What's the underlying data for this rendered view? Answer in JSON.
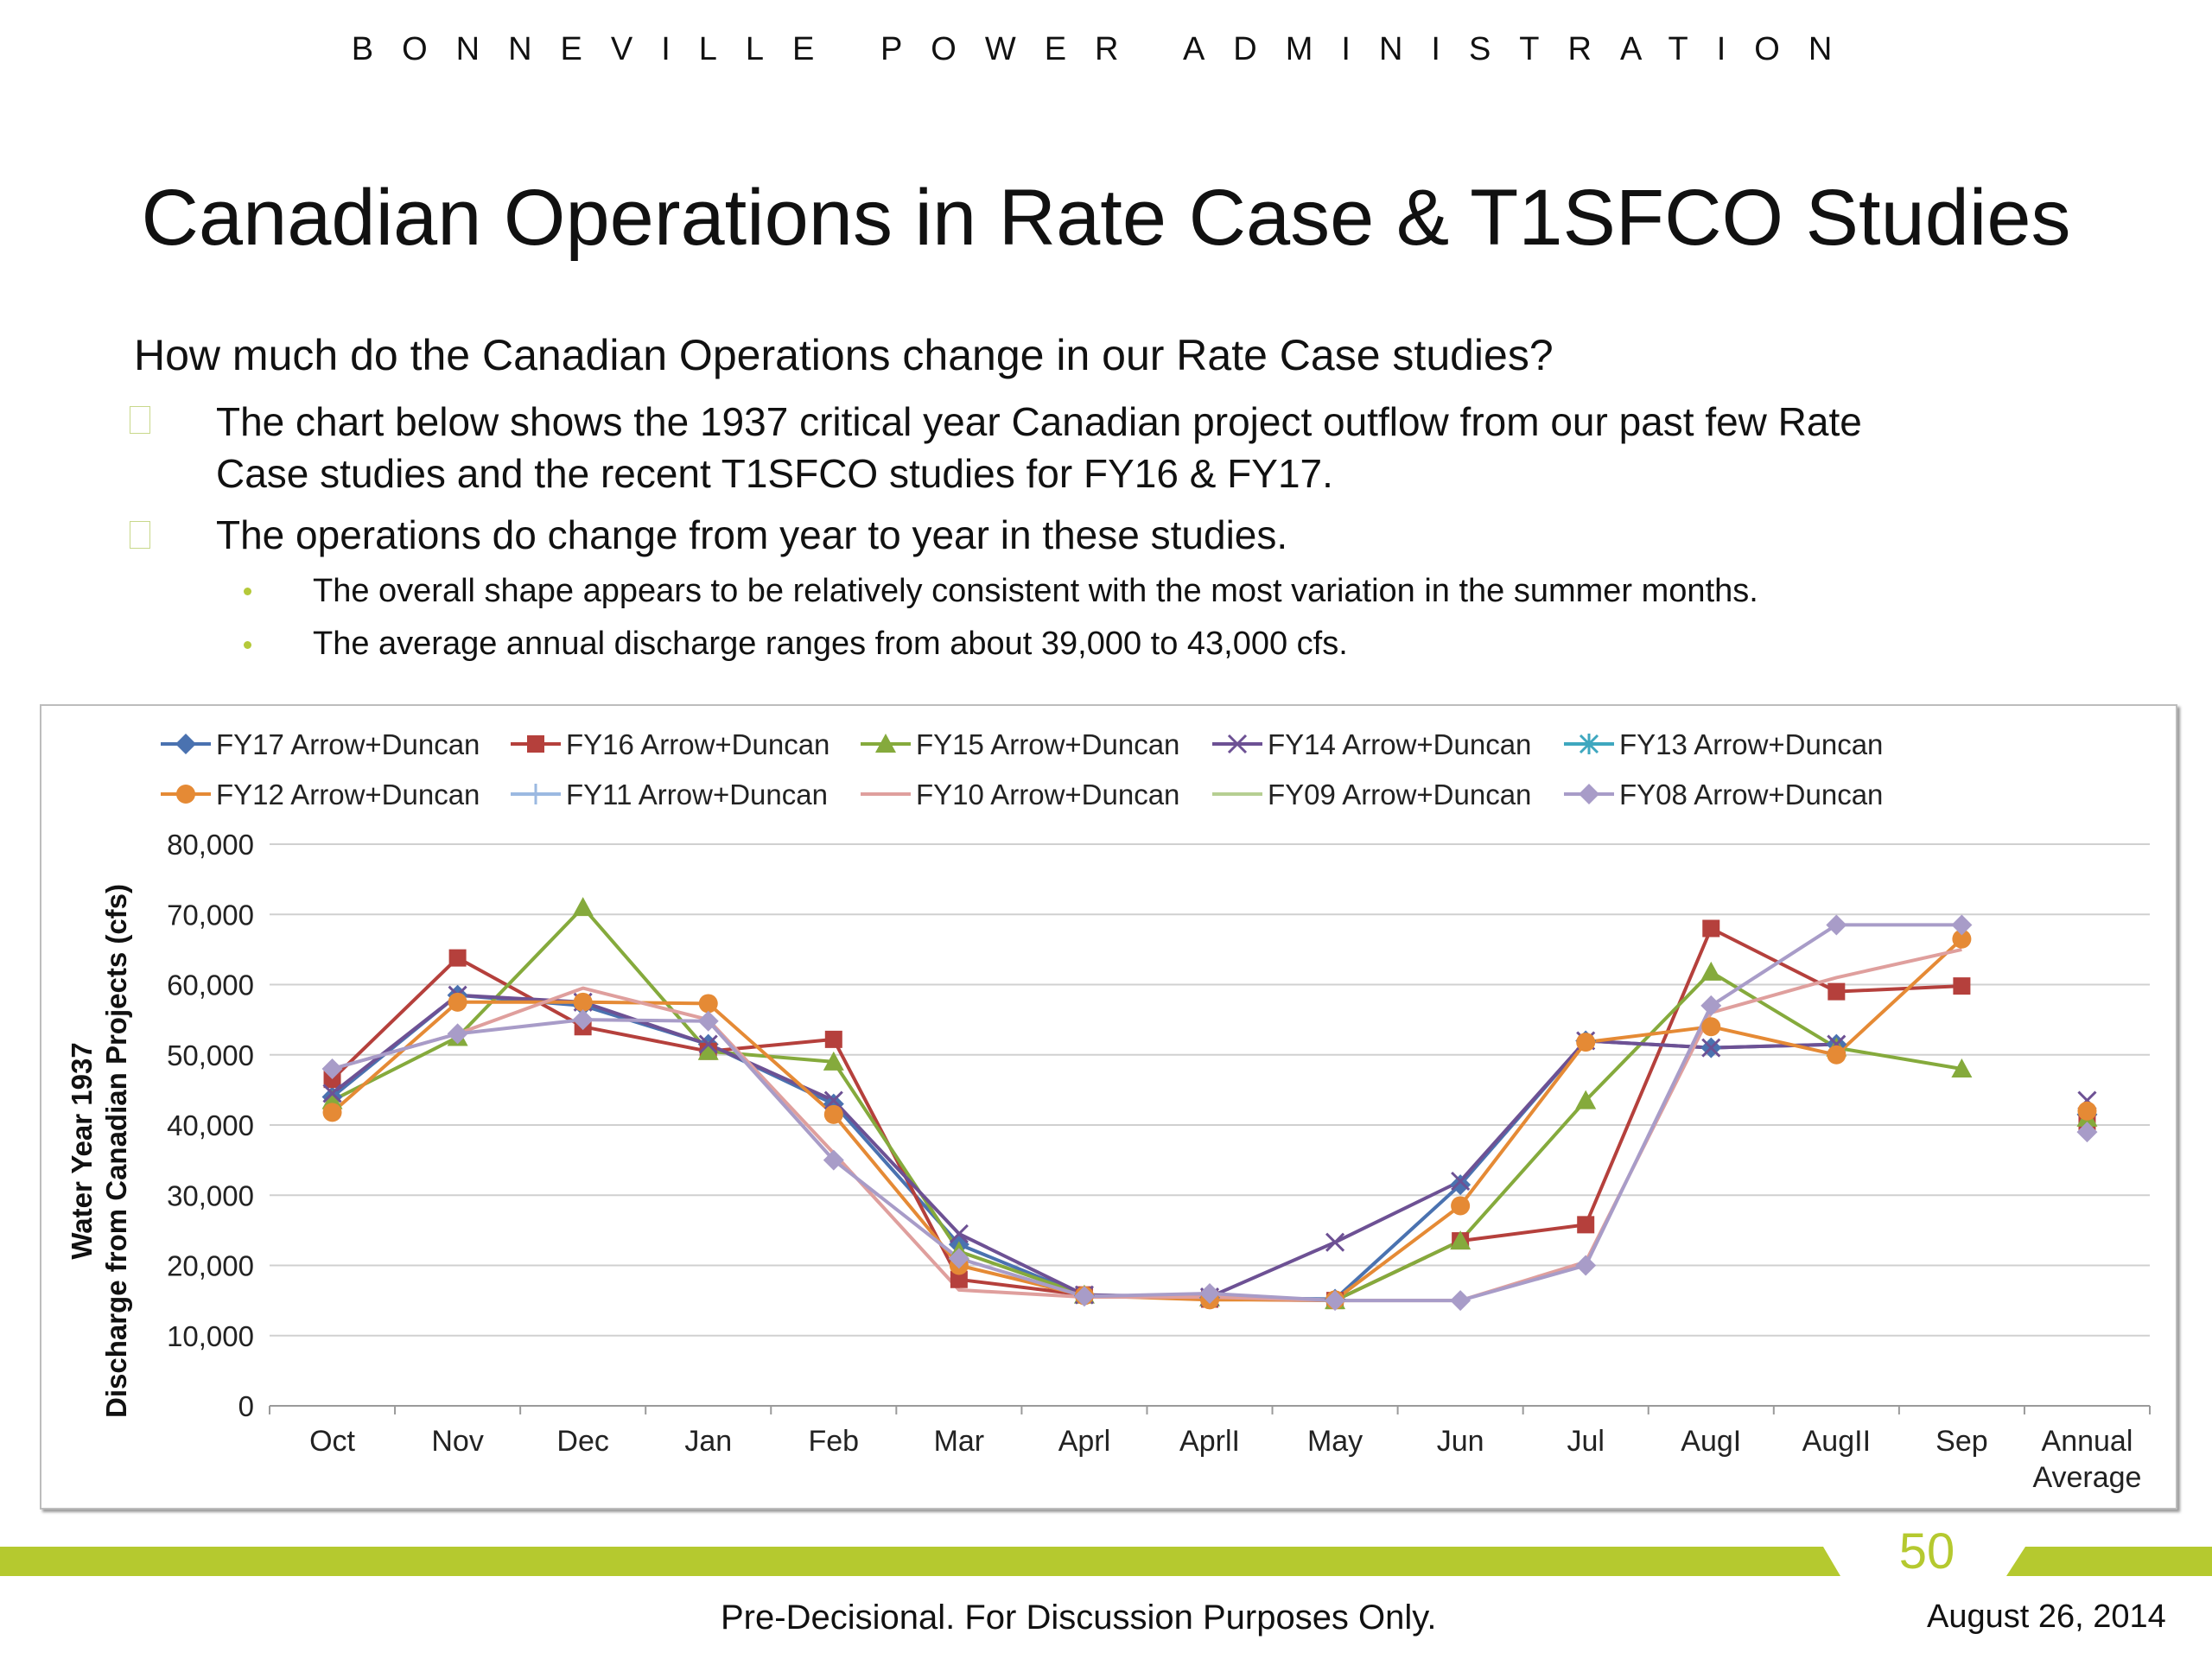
{
  "header": {
    "org": "BONNEVILLE POWER ADMINISTRATION"
  },
  "slide": {
    "title": "Canadian Operations in Rate Case & T1SFCO Studies",
    "question": "How much do the Canadian Operations change in our Rate Case studies?",
    "bullets": [
      {
        "lines": [
          "The chart below shows the 1937 critical year Canadian project outflow from our past few Rate",
          "Case studies and the recent T1SFCO studies for FY16 & FY17."
        ]
      },
      {
        "lines": [
          "The operations do change from year to year in these studies."
        ]
      }
    ],
    "sub_bullets": [
      "The overall shape appears to be relatively consistent with the most variation in the summer months.",
      "The average annual discharge ranges from about 39,000 to 43,000 cfs."
    ]
  },
  "footer": {
    "page_number": "50",
    "disclaimer": "Pre-Decisional.  For Discussion Purposes Only.",
    "date": "August 26, 2014"
  },
  "chart_data": {
    "type": "line",
    "ylabel_line1": "Water Year 1937",
    "ylabel_line2": "Discharge from Canadian Projects (cfs)",
    "xlabel": "",
    "categories": [
      "Oct",
      "Nov",
      "Dec",
      "Jan",
      "Feb",
      "Mar",
      "Aprl",
      "AprlI",
      "May",
      "Jun",
      "Jul",
      "AugI",
      "AugII",
      "Sep",
      "Annual Average"
    ],
    "category_labels": [
      [
        "Oct"
      ],
      [
        "Nov"
      ],
      [
        "Dec"
      ],
      [
        "Jan"
      ],
      [
        "Feb"
      ],
      [
        "Mar"
      ],
      [
        "Aprl"
      ],
      [
        "AprlI"
      ],
      [
        "May"
      ],
      [
        "Jun"
      ],
      [
        "Jul"
      ],
      [
        "AugI"
      ],
      [
        "AugII"
      ],
      [
        "Sep"
      ],
      [
        "Annual",
        "Average"
      ]
    ],
    "ylim": [
      0,
      80000
    ],
    "yticks": [
      0,
      10000,
      20000,
      30000,
      40000,
      50000,
      60000,
      70000,
      80000
    ],
    "ytick_labels": [
      "0",
      "10,000",
      "20,000",
      "30,000",
      "40,000",
      "50,000",
      "60,000",
      "70,000",
      "80,000"
    ],
    "grid": true,
    "legend_position": "top",
    "series": [
      {
        "name": "FY17 Arrow+Duncan",
        "color": "#4a72b0",
        "marker": "diamond",
        "values": [
          44000,
          58500,
          57000,
          51500,
          43000,
          23000,
          15700,
          15400,
          15200,
          31500,
          52000,
          51000,
          51500,
          null,
          41500
        ]
      },
      {
        "name": "FY16 Arrow+Duncan",
        "color": "#b5403c",
        "marker": "square",
        "values": [
          46500,
          63800,
          54000,
          50500,
          52200,
          18000,
          15800,
          15200,
          15000,
          23500,
          25800,
          68000,
          59000,
          59800,
          40500
        ]
      },
      {
        "name": "FY15 Arrow+Duncan",
        "color": "#85aa3c",
        "marker": "triangle",
        "values": [
          43500,
          52500,
          71000,
          50500,
          49000,
          22000,
          15800,
          15400,
          15000,
          23500,
          43500,
          61800,
          51000,
          48000,
          41000
        ]
      },
      {
        "name": "FY14 Arrow+Duncan",
        "color": "#6d5194",
        "marker": "x",
        "values": [
          44500,
          58500,
          57500,
          51500,
          43500,
          24500,
          15800,
          15500,
          23300,
          32000,
          52000,
          51000,
          51500,
          null,
          43500
        ]
      },
      {
        "name": "FY13 Arrow+Duncan",
        "color": "#3ea7bf",
        "marker": "star",
        "values": [
          null,
          null,
          null,
          null,
          null,
          null,
          null,
          null,
          null,
          null,
          null,
          null,
          null,
          null,
          null
        ]
      },
      {
        "name": "FY12 Arrow+Duncan",
        "color": "#e58a35",
        "marker": "circle",
        "values": [
          41800,
          57500,
          57500,
          57300,
          41500,
          20000,
          15700,
          15100,
          15100,
          28500,
          51800,
          54000,
          50000,
          66500,
          42000
        ]
      },
      {
        "name": "FY11 Arrow+Duncan",
        "color": "#9bb9e1",
        "marker": "plus",
        "values": [
          null,
          null,
          null,
          null,
          null,
          null,
          null,
          null,
          null,
          null,
          null,
          null,
          null,
          null,
          null
        ]
      },
      {
        "name": "FY10 Arrow+Duncan",
        "color": "#df9f9d",
        "marker": "none",
        "values": [
          48000,
          53000,
          59500,
          55000,
          36000,
          16500,
          15500,
          15500,
          15000,
          15000,
          20500,
          56000,
          61000,
          65000,
          null
        ]
      },
      {
        "name": "FY09 Arrow+Duncan",
        "color": "#b6cf92",
        "marker": "none",
        "values": [
          null,
          null,
          null,
          null,
          null,
          null,
          null,
          null,
          null,
          null,
          null,
          null,
          null,
          null,
          null
        ]
      },
      {
        "name": "FY08 Arrow+Duncan",
        "color": "#a89cc8",
        "marker": "diamond",
        "values": [
          48000,
          53000,
          55000,
          54800,
          35000,
          21000,
          15600,
          16000,
          15000,
          15000,
          20000,
          57000,
          68500,
          68500,
          39000
        ]
      }
    ]
  }
}
